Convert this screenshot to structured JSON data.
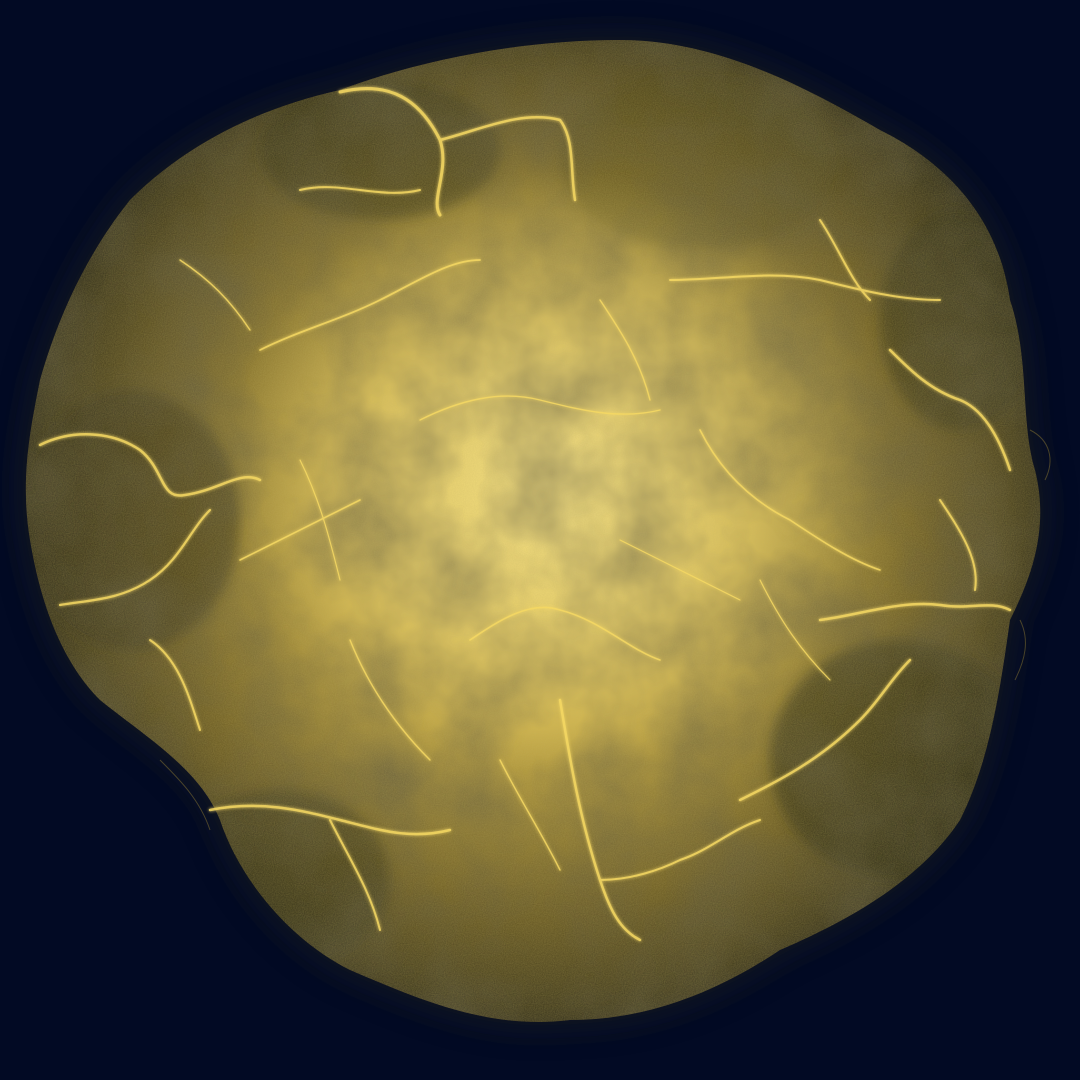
{
  "artwork": {
    "subject": "gold-alcohol-ink-splash",
    "icon": "ink-splash-icon",
    "colors": {
      "background": "#020a24",
      "gold_bright": "#f3dc6e",
      "gold_mid": "#c9a93a",
      "gold_dark": "#6b5a1f",
      "gold_deep": "#3a3416",
      "vein": "#ffe27a"
    }
  }
}
